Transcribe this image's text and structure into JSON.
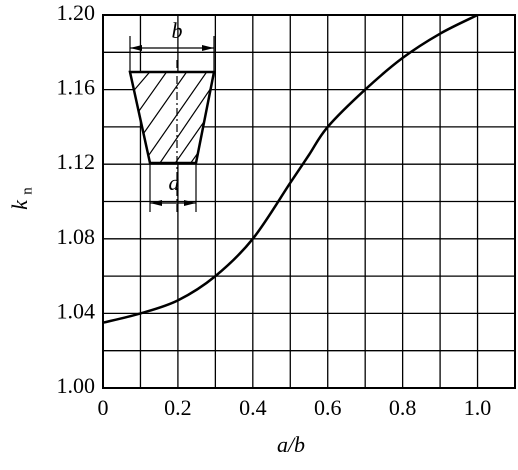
{
  "chart_data": {
    "type": "line",
    "ylabel": {
      "text": "k",
      "subscript": "n"
    },
    "xlabel": "a/b",
    "x": [
      0,
      0.1,
      0.2,
      0.3,
      0.4,
      0.5,
      0.55,
      0.6,
      0.7,
      0.8,
      0.9,
      1.0
    ],
    "series": [
      {
        "color": "#000000",
        "values": [
          1.035,
          1.04,
          1.047,
          1.06,
          1.08,
          1.11,
          1.125,
          1.14,
          1.16,
          1.177,
          1.19,
          1.2
        ]
      }
    ],
    "xlim": [
      0,
      1.1
    ],
    "ylim": [
      1.0,
      1.2
    ],
    "xticks": [
      0,
      0.2,
      0.4,
      0.6,
      0.8,
      {
        "value": 1.0,
        "label": "1.0"
      }
    ],
    "yticks": [
      {
        "value": 1.0,
        "label": "1.00"
      },
      1.04,
      1.08,
      1.12,
      1.16,
      {
        "value": 1.2,
        "label": "1.20"
      }
    ],
    "minor_xticks": [
      0.1,
      0.3,
      0.5,
      0.7,
      0.9,
      1.1
    ],
    "minor_yticks": [
      1.02,
      1.06,
      1.1,
      1.14,
      1.18
    ],
    "grid": true,
    "annotations": [
      "b",
      "a"
    ]
  }
}
